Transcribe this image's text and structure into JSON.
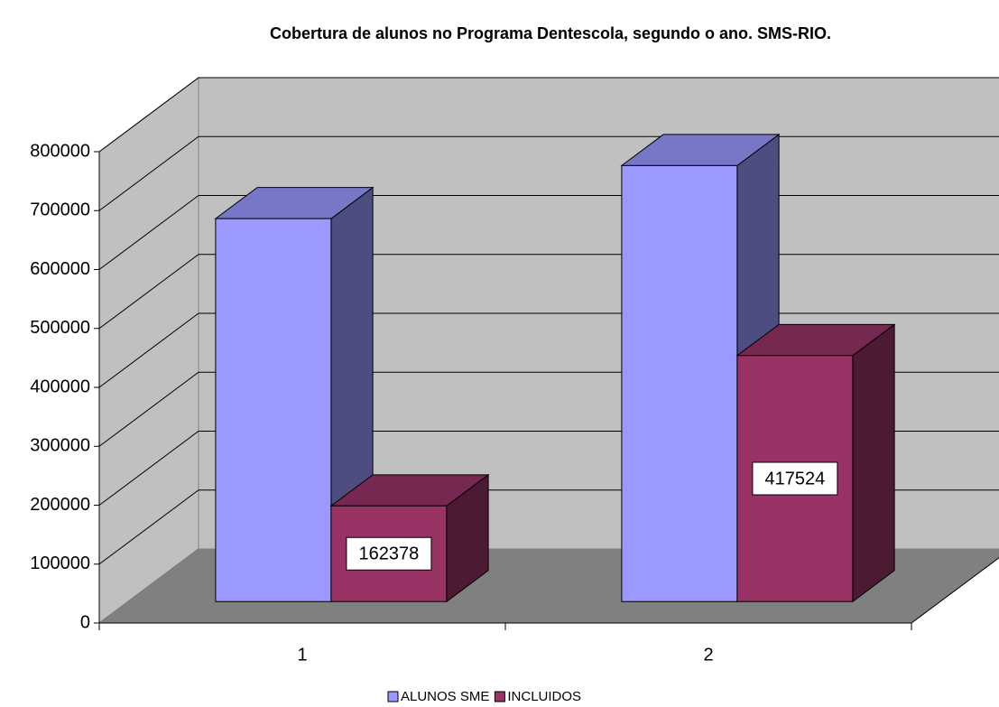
{
  "chart_data": {
    "type": "bar3d",
    "title": "Cobertura de alunos no Programa Dentescola, segundo o ano. SMS-RIO.",
    "categories": [
      "1",
      "2"
    ],
    "series": [
      {
        "name": "ALUNOS SME",
        "color": "#9999ff",
        "values": [
          650000,
          740000
        ]
      },
      {
        "name": "INCLUIDOS",
        "color": "#993366",
        "values": [
          162378,
          417524
        ],
        "show_value_labels": true
      }
    ],
    "ylim": [
      0,
      800000
    ],
    "yticks": [
      0,
      100000,
      200000,
      300000,
      400000,
      500000,
      600000,
      700000,
      800000
    ],
    "grid": true,
    "legend": "bottom"
  }
}
